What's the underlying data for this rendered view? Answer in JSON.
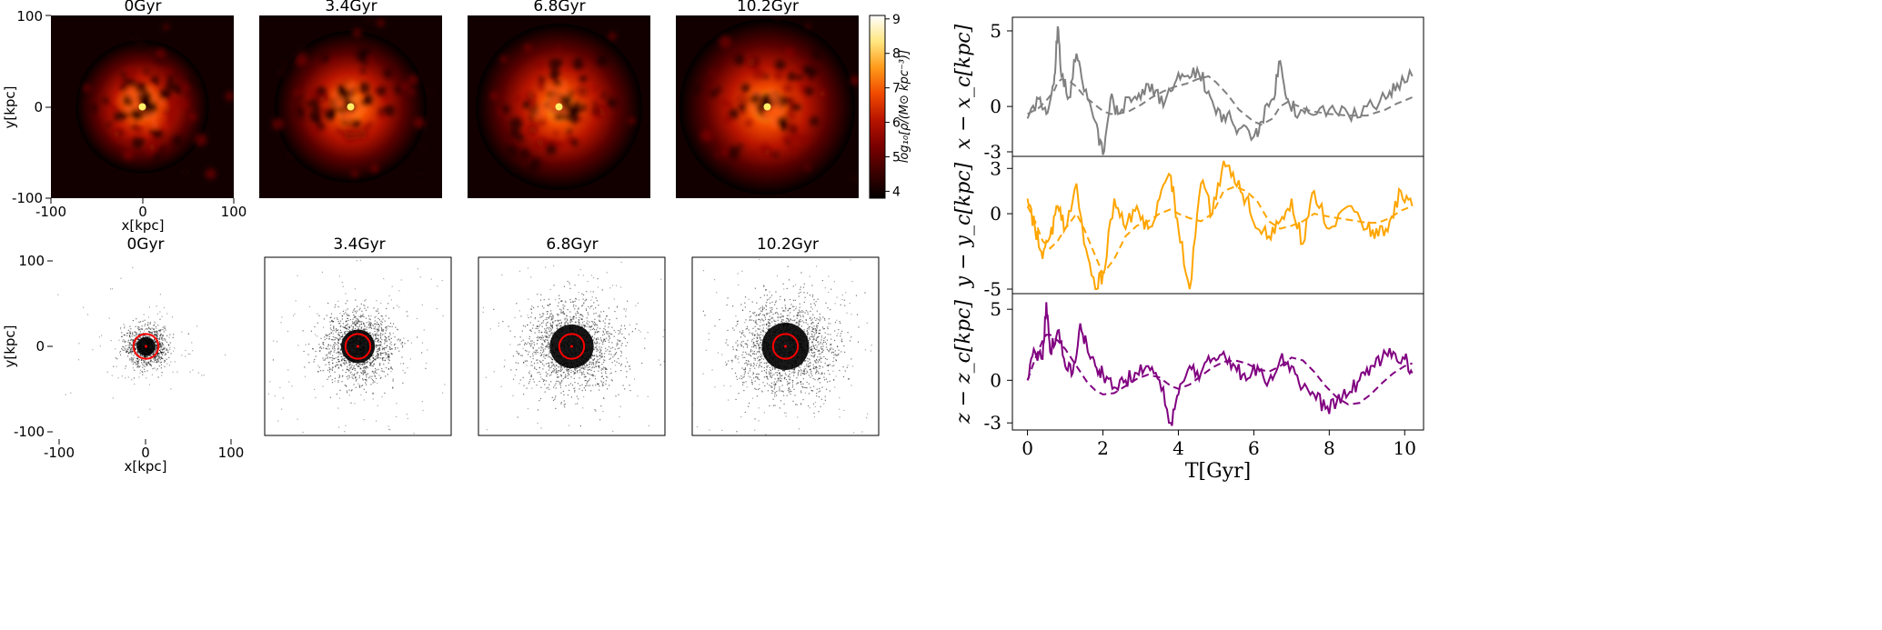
{
  "figure": {
    "density_maps": {
      "titles": [
        "0Gyr",
        "3.4Gyr",
        "6.8Gyr",
        "10.2Gyr"
      ],
      "xlabel": "x[kpc]",
      "ylabel": "y[kpc]",
      "x_ticks": [
        "-100",
        "0",
        "100"
      ],
      "y_ticks": [
        "100",
        "0",
        "-100"
      ],
      "colorbar": {
        "label": "log₁₀[ρ/(M⊙ kpc⁻³)]",
        "ticks": [
          "9",
          "8",
          "7",
          "6",
          "5",
          "4"
        ],
        "range": [
          3.8,
          9.1
        ],
        "colormap": [
          "#000000",
          "#3d0000",
          "#7a0000",
          "#b81400",
          "#f04a00",
          "#ff9a1a",
          "#ffe680",
          "#ffffff"
        ]
      }
    },
    "particle_plots": {
      "titles": [
        "0Gyr",
        "3.4Gyr",
        "6.8Gyr",
        "10.2Gyr"
      ],
      "xlabel": "x[kpc]",
      "ylabel": "y[kpc]",
      "x_ticks": [
        "-100",
        "0",
        "100"
      ],
      "y_ticks": [
        "100",
        "0",
        "-100"
      ],
      "circle_color": "#ff0000"
    }
  },
  "chart_data": [
    {
      "type": "heatmap",
      "title": "0Gyr",
      "xlabel": "x[kpc]",
      "ylabel": "y[kpc]",
      "xlim": [
        -100,
        100
      ],
      "ylim": [
        -100,
        100
      ],
      "colorbar_range": [
        3.8,
        9.1
      ],
      "peak_log_density": 9.0,
      "core_radius_kpc": 28
    },
    {
      "type": "heatmap",
      "title": "3.4Gyr",
      "xlim": [
        -100,
        100
      ],
      "ylim": [
        -100,
        100
      ],
      "peak_log_density": 8.9,
      "core_radius_kpc": 32
    },
    {
      "type": "heatmap",
      "title": "6.8Gyr",
      "xlim": [
        -100,
        100
      ],
      "ylim": [
        -100,
        100
      ],
      "peak_log_density": 8.8,
      "core_radius_kpc": 35
    },
    {
      "type": "heatmap",
      "title": "10.2Gyr",
      "xlim": [
        -100,
        100
      ],
      "ylim": [
        -100,
        100
      ],
      "peak_log_density": 8.9,
      "core_radius_kpc": 37
    },
    {
      "type": "scatter",
      "title": "0Gyr",
      "xlabel": "x[kpc]",
      "ylabel": "y[kpc]",
      "xlim": [
        -105,
        105
      ],
      "ylim": [
        -105,
        105
      ],
      "circle_radius_kpc": 14,
      "spread_kpc": 11
    },
    {
      "type": "scatter",
      "title": "3.4Gyr",
      "xlim": [
        -105,
        105
      ],
      "ylim": [
        -105,
        105
      ],
      "circle_radius_kpc": 14,
      "spread_kpc": 20
    },
    {
      "type": "scatter",
      "title": "6.8Gyr",
      "xlim": [
        -105,
        105
      ],
      "ylim": [
        -105,
        105
      ],
      "circle_radius_kpc": 14,
      "spread_kpc": 26
    },
    {
      "type": "scatter",
      "title": "10.2Gyr",
      "xlim": [
        -105,
        105
      ],
      "ylim": [
        -105,
        105
      ],
      "circle_radius_kpc": 14,
      "spread_kpc": 28
    },
    {
      "type": "line",
      "xlabel": "T[Gyr]",
      "xlim": [
        -0.4,
        10.5
      ],
      "x_ticks": [
        0,
        2,
        4,
        6,
        8,
        10
      ],
      "x_tick_labels": [
        "0",
        "2",
        "4",
        "6",
        "8",
        "10"
      ],
      "panels": [
        {
          "ylabel": "x − x_c[kpc]",
          "ylim": [
            -3.3,
            5.9
          ],
          "y_ticks": [
            5,
            0,
            -3
          ],
          "color": "#808080",
          "t": [
            0,
            0.3,
            0.5,
            0.7,
            0.8,
            0.9,
            1.1,
            1.3,
            1.5,
            1.8,
            2.0,
            2.2,
            2.4,
            2.7,
            3.0,
            3.3,
            3.6,
            3.9,
            4.2,
            4.5,
            4.8,
            5.0,
            5.3,
            5.6,
            6.0,
            6.2,
            6.5,
            6.7,
            6.9,
            7.2,
            7.5,
            8.0,
            8.5,
            9.0,
            9.5,
            9.8,
            10.2
          ],
          "raw": [
            -0.8,
            0.5,
            -0.5,
            1.5,
            5.3,
            2.0,
            0.6,
            3.5,
            1.0,
            -1.0,
            -3.2,
            0.5,
            -0.5,
            0.6,
            0.5,
            1.5,
            0.0,
            1.5,
            2.0,
            2.5,
            1.0,
            -0.5,
            -0.5,
            -1.5,
            -2.0,
            -1.0,
            0.5,
            3.0,
            0.5,
            -0.5,
            -0.5,
            -0.2,
            -0.5,
            0.0,
            0.5,
            1.5,
            2.0
          ],
          "smooth": [
            -0.5,
            -0.1,
            0.4,
            1.0,
            1.6,
            1.8,
            1.7,
            1.3,
            0.7,
            0.1,
            -0.3,
            -0.5,
            -0.5,
            -0.3,
            0.1,
            0.6,
            1.0,
            1.3,
            1.5,
            1.8,
            2.0,
            1.6,
            0.8,
            -0.2,
            -1.0,
            -1.2,
            -0.8,
            0.0,
            0.3,
            0.0,
            -0.3,
            -0.5,
            -0.6,
            -0.6,
            -0.2,
            0.2,
            0.6
          ]
        },
        {
          "ylabel": "y − y_c[kpc]",
          "ylim": [
            -5.3,
            3.8
          ],
          "y_ticks": [
            3,
            0,
            -5
          ],
          "color": "#ffa500",
          "t": [
            0,
            0.2,
            0.4,
            0.6,
            0.8,
            1.0,
            1.3,
            1.5,
            1.8,
            2.0,
            2.3,
            2.6,
            2.9,
            3.2,
            3.5,
            3.8,
            4.0,
            4.3,
            4.6,
            4.9,
            5.2,
            5.5,
            5.8,
            6.1,
            6.4,
            6.7,
            7.0,
            7.3,
            7.6,
            8.0,
            8.5,
            9.0,
            9.3,
            9.6,
            9.9,
            10.2
          ],
          "raw": [
            1.0,
            -1.0,
            -3.0,
            -1.5,
            0.5,
            -1.0,
            2.0,
            -2.0,
            -5.0,
            -4.0,
            1.0,
            -1.0,
            0.5,
            -1.0,
            1.0,
            2.5,
            -1.0,
            -5.0,
            2.0,
            0.0,
            3.5,
            2.0,
            1.0,
            -1.0,
            -1.5,
            -0.5,
            1.0,
            -2.0,
            1.5,
            -1.0,
            0.5,
            -1.0,
            -1.5,
            -0.5,
            1.5,
            0.5
          ],
          "smooth": [
            0.5,
            -0.5,
            -1.8,
            -2.3,
            -1.8,
            -1.0,
            0.0,
            -1.0,
            -2.8,
            -4.0,
            -3.0,
            -1.5,
            -0.8,
            -0.5,
            0.0,
            0.3,
            0.0,
            -0.3,
            -0.5,
            0.0,
            1.5,
            1.8,
            1.5,
            0.8,
            -0.5,
            -1.0,
            -0.8,
            -0.5,
            0.0,
            -0.2,
            -0.4,
            -0.6,
            -0.6,
            -0.3,
            0.2,
            0.5
          ]
        },
        {
          "ylabel": "z − z_c[kpc]",
          "ylim": [
            -3.5,
            6.1
          ],
          "y_ticks": [
            5,
            0,
            -3
          ],
          "color": "#800080",
          "t": [
            0,
            0.2,
            0.4,
            0.5,
            0.6,
            0.8,
            1.0,
            1.2,
            1.4,
            1.6,
            1.8,
            2.0,
            2.3,
            2.6,
            2.9,
            3.2,
            3.5,
            3.8,
            4.0,
            4.3,
            4.6,
            4.9,
            5.2,
            5.5,
            5.8,
            6.1,
            6.4,
            6.7,
            7.0,
            7.3,
            7.6,
            7.9,
            8.2,
            8.5,
            8.8,
            9.1,
            9.4,
            9.7,
            10.0,
            10.2
          ],
          "raw": [
            0.0,
            2.0,
            1.5,
            5.5,
            2.0,
            3.5,
            1.0,
            0.5,
            4.0,
            2.0,
            1.0,
            0.5,
            -0.5,
            0.0,
            0.5,
            1.0,
            0.0,
            -3.0,
            -1.0,
            1.0,
            0.5,
            1.5,
            2.0,
            1.0,
            0.0,
            1.0,
            0.0,
            1.5,
            1.0,
            -0.5,
            -1.0,
            -2.0,
            -1.5,
            -1.0,
            0.0,
            1.0,
            1.5,
            2.0,
            1.5,
            0.5
          ],
          "smooth": [
            0.0,
            1.5,
            2.8,
            3.2,
            3.2,
            2.8,
            2.2,
            1.4,
            0.6,
            -0.2,
            -0.7,
            -1.0,
            -0.9,
            -0.4,
            0.1,
            0.4,
            0.2,
            -0.4,
            -0.6,
            -0.3,
            0.3,
            0.9,
            1.3,
            1.4,
            1.2,
            0.8,
            0.6,
            1.0,
            1.6,
            1.4,
            0.6,
            -0.4,
            -1.2,
            -1.7,
            -1.6,
            -1.0,
            -0.2,
            0.5,
            1.0,
            1.2
          ]
        }
      ]
    }
  ]
}
